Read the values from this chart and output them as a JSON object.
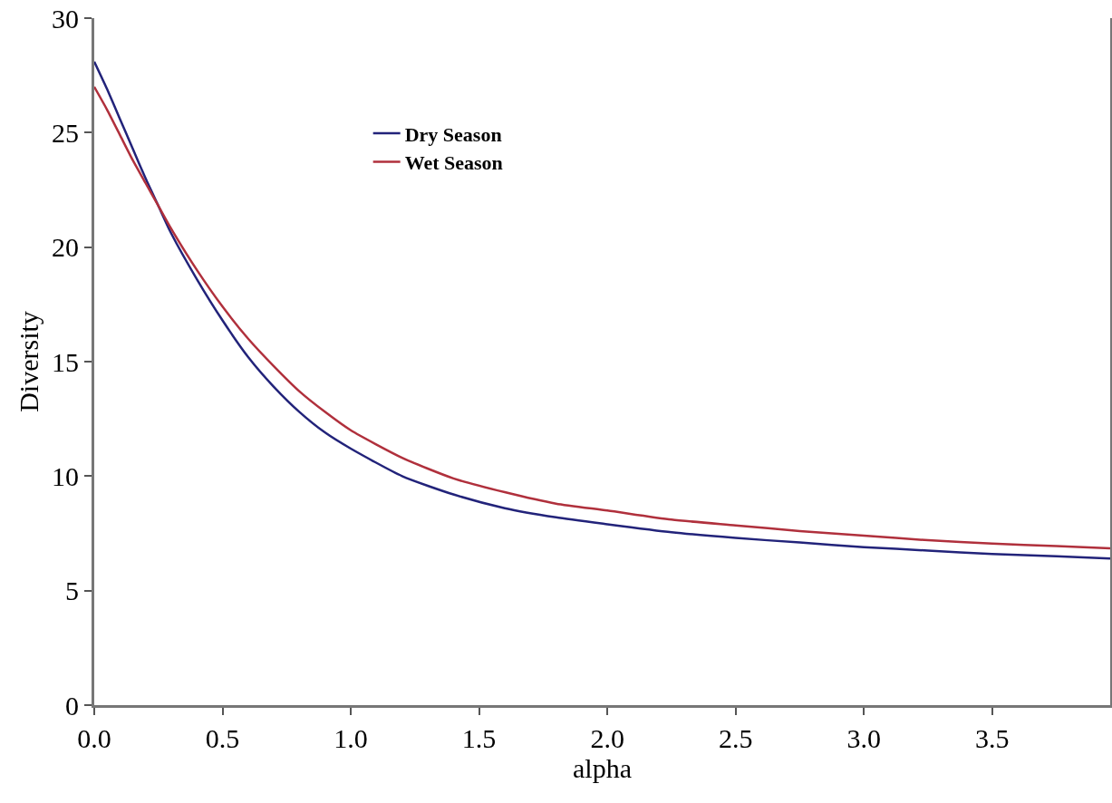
{
  "chart_data": {
    "type": "line",
    "xlabel": "alpha",
    "ylabel": "Diversity",
    "x": [
      0,
      0.05,
      0.1,
      0.15,
      0.2,
      0.25,
      0.3,
      0.4,
      0.5,
      0.6,
      0.7,
      0.8,
      0.9,
      1.0,
      1.2,
      1.4,
      1.6,
      1.8,
      2.0,
      2.25,
      2.5,
      2.75,
      3.0,
      3.25,
      3.5,
      3.75,
      3.96
    ],
    "series": [
      {
        "name": "Dry Season",
        "color": "#22237a",
        "values": [
          28.1,
          26.9,
          25.6,
          24.3,
          23.0,
          21.8,
          20.6,
          18.6,
          16.8,
          15.2,
          13.9,
          12.8,
          11.9,
          11.2,
          10.0,
          9.2,
          8.6,
          8.2,
          7.9,
          7.55,
          7.3,
          7.1,
          6.9,
          6.75,
          6.6,
          6.5,
          6.4
        ]
      },
      {
        "name": "Wet Season",
        "color": "#b0303c",
        "values": [
          27.0,
          26.0,
          24.9,
          23.8,
          22.8,
          21.8,
          20.8,
          19.0,
          17.4,
          16.0,
          14.8,
          13.7,
          12.8,
          12.0,
          10.8,
          9.9,
          9.3,
          8.8,
          8.5,
          8.1,
          7.85,
          7.6,
          7.4,
          7.2,
          7.05,
          6.95,
          6.85
        ]
      }
    ],
    "xlim": [
      0,
      3.96
    ],
    "xticks": [
      {
        "value": 0,
        "label": "0.0"
      },
      {
        "value": 0.5,
        "label": "0.5"
      },
      {
        "value": 1,
        "label": "1.0"
      },
      {
        "value": 1.5,
        "label": "1.5"
      },
      {
        "value": 2,
        "label": "2.0"
      },
      {
        "value": 2.5,
        "label": "2.5"
      },
      {
        "value": 3,
        "label": "3.0"
      },
      {
        "value": 3.5,
        "label": "3.5"
      }
    ],
    "ylim": [
      0,
      30
    ],
    "yticks": [
      0,
      5,
      10,
      15,
      20,
      25,
      30
    ],
    "grid": false,
    "legend": "top left",
    "line_style": "solid",
    "marker": "none"
  }
}
